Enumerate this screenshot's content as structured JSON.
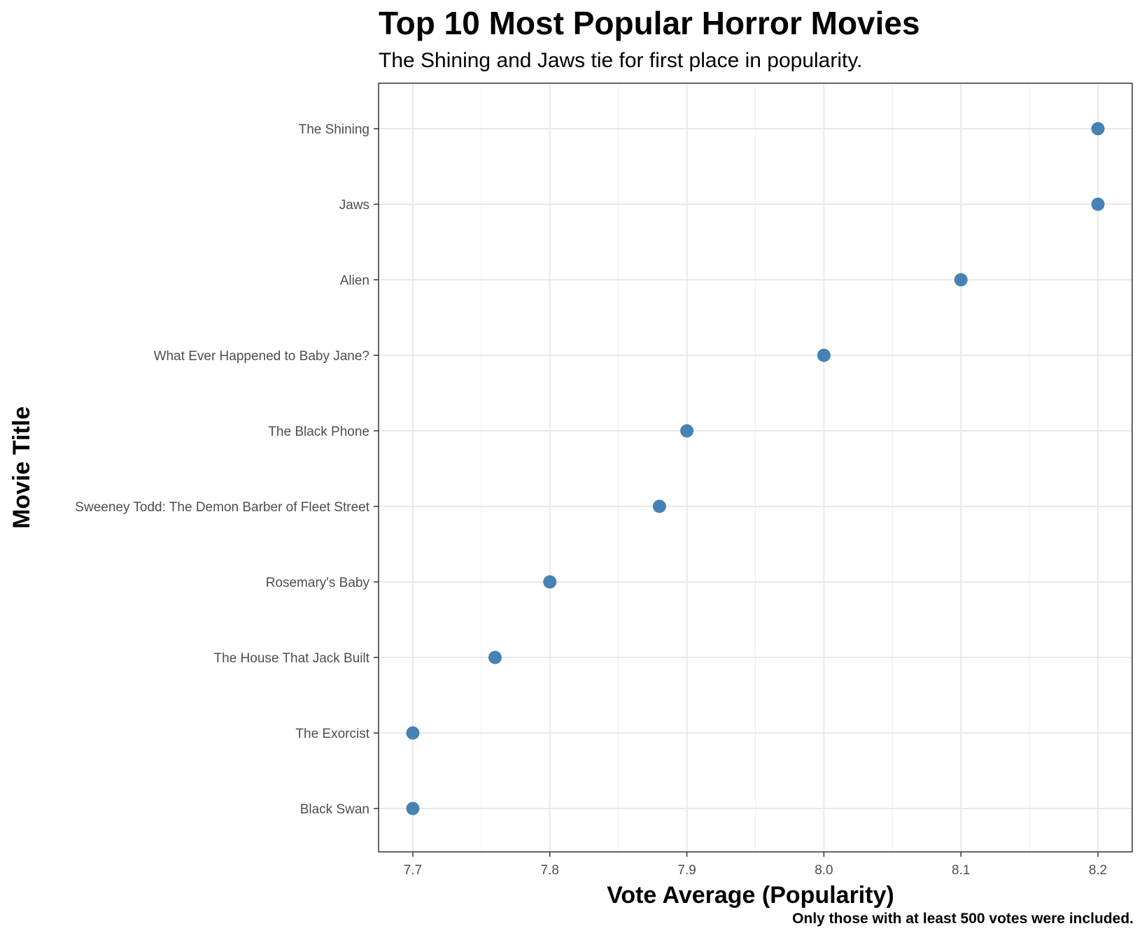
{
  "chart_data": {
    "type": "scatter",
    "title": "Top 10 Most Popular Horror Movies",
    "subtitle": "The Shining and Jaws tie for first place in popularity.",
    "caption": "Only those with at least 500 votes were included.",
    "xlabel": "Vote Average (Popularity)",
    "ylabel": "Movie Title",
    "xlim": [
      7.675,
      8.225
    ],
    "xticks": [
      "7.7",
      "7.8",
      "7.9",
      "8.0",
      "8.1",
      "8.2"
    ],
    "categories": [
      "The Shining",
      "Jaws",
      "Alien",
      "What Ever Happened to Baby Jane?",
      "The Black Phone",
      "Sweeney Todd: The Demon Barber of Fleet Street",
      "Rosemary's Baby",
      "The House That Jack Built",
      "The Exorcist",
      "Black Swan"
    ],
    "values": [
      8.2,
      8.2,
      8.1,
      8.0,
      7.9,
      7.88,
      7.8,
      7.76,
      7.7,
      7.7
    ],
    "point_color": "#4682B4",
    "grid": true,
    "legend": "none"
  }
}
